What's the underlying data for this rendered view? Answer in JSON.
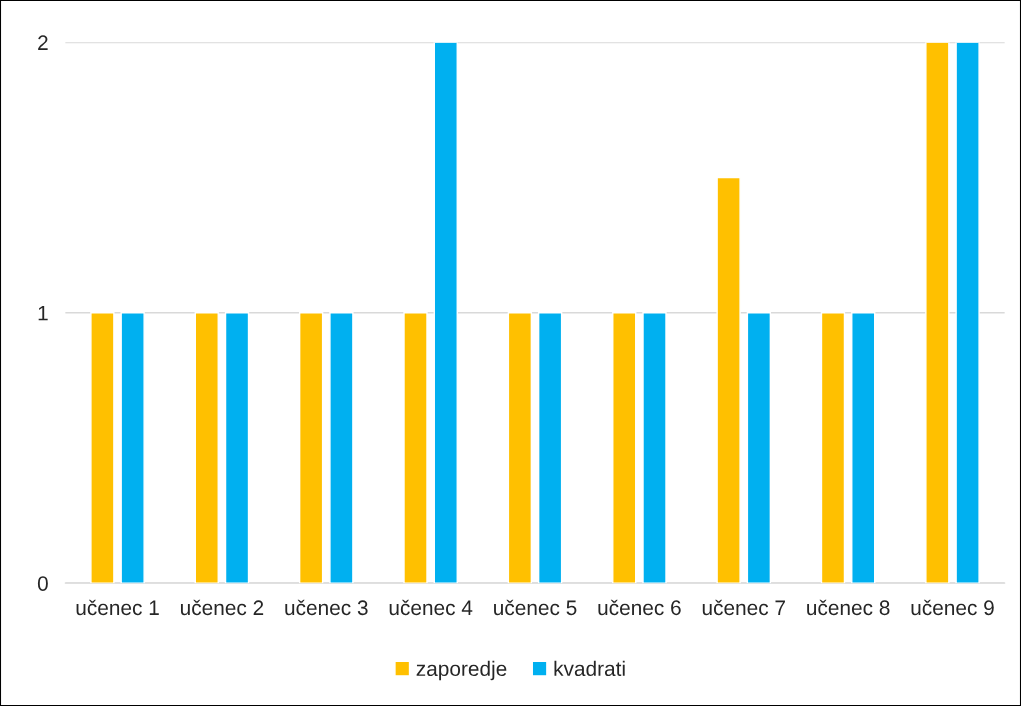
{
  "chart_data": {
    "type": "bar",
    "categories": [
      "učenec 1",
      "učenec 2",
      "učenec 3",
      "učenec 4",
      "učenec 5",
      "učenec 6",
      "učenec 7",
      "učenec 8",
      "učenec 9"
    ],
    "series": [
      {
        "name": "zaporedje",
        "color": "#ffc000",
        "values": [
          1,
          1,
          1,
          1,
          1,
          1,
          1.5,
          1,
          2
        ]
      },
      {
        "name": "kvadrati",
        "color": "#00b0f0",
        "values": [
          1,
          1,
          1,
          2,
          1,
          1,
          1,
          1,
          2
        ]
      }
    ],
    "ylim": [
      0,
      2
    ],
    "yticks": [
      0,
      1,
      2
    ],
    "grid": "y",
    "legend": "bottom"
  }
}
